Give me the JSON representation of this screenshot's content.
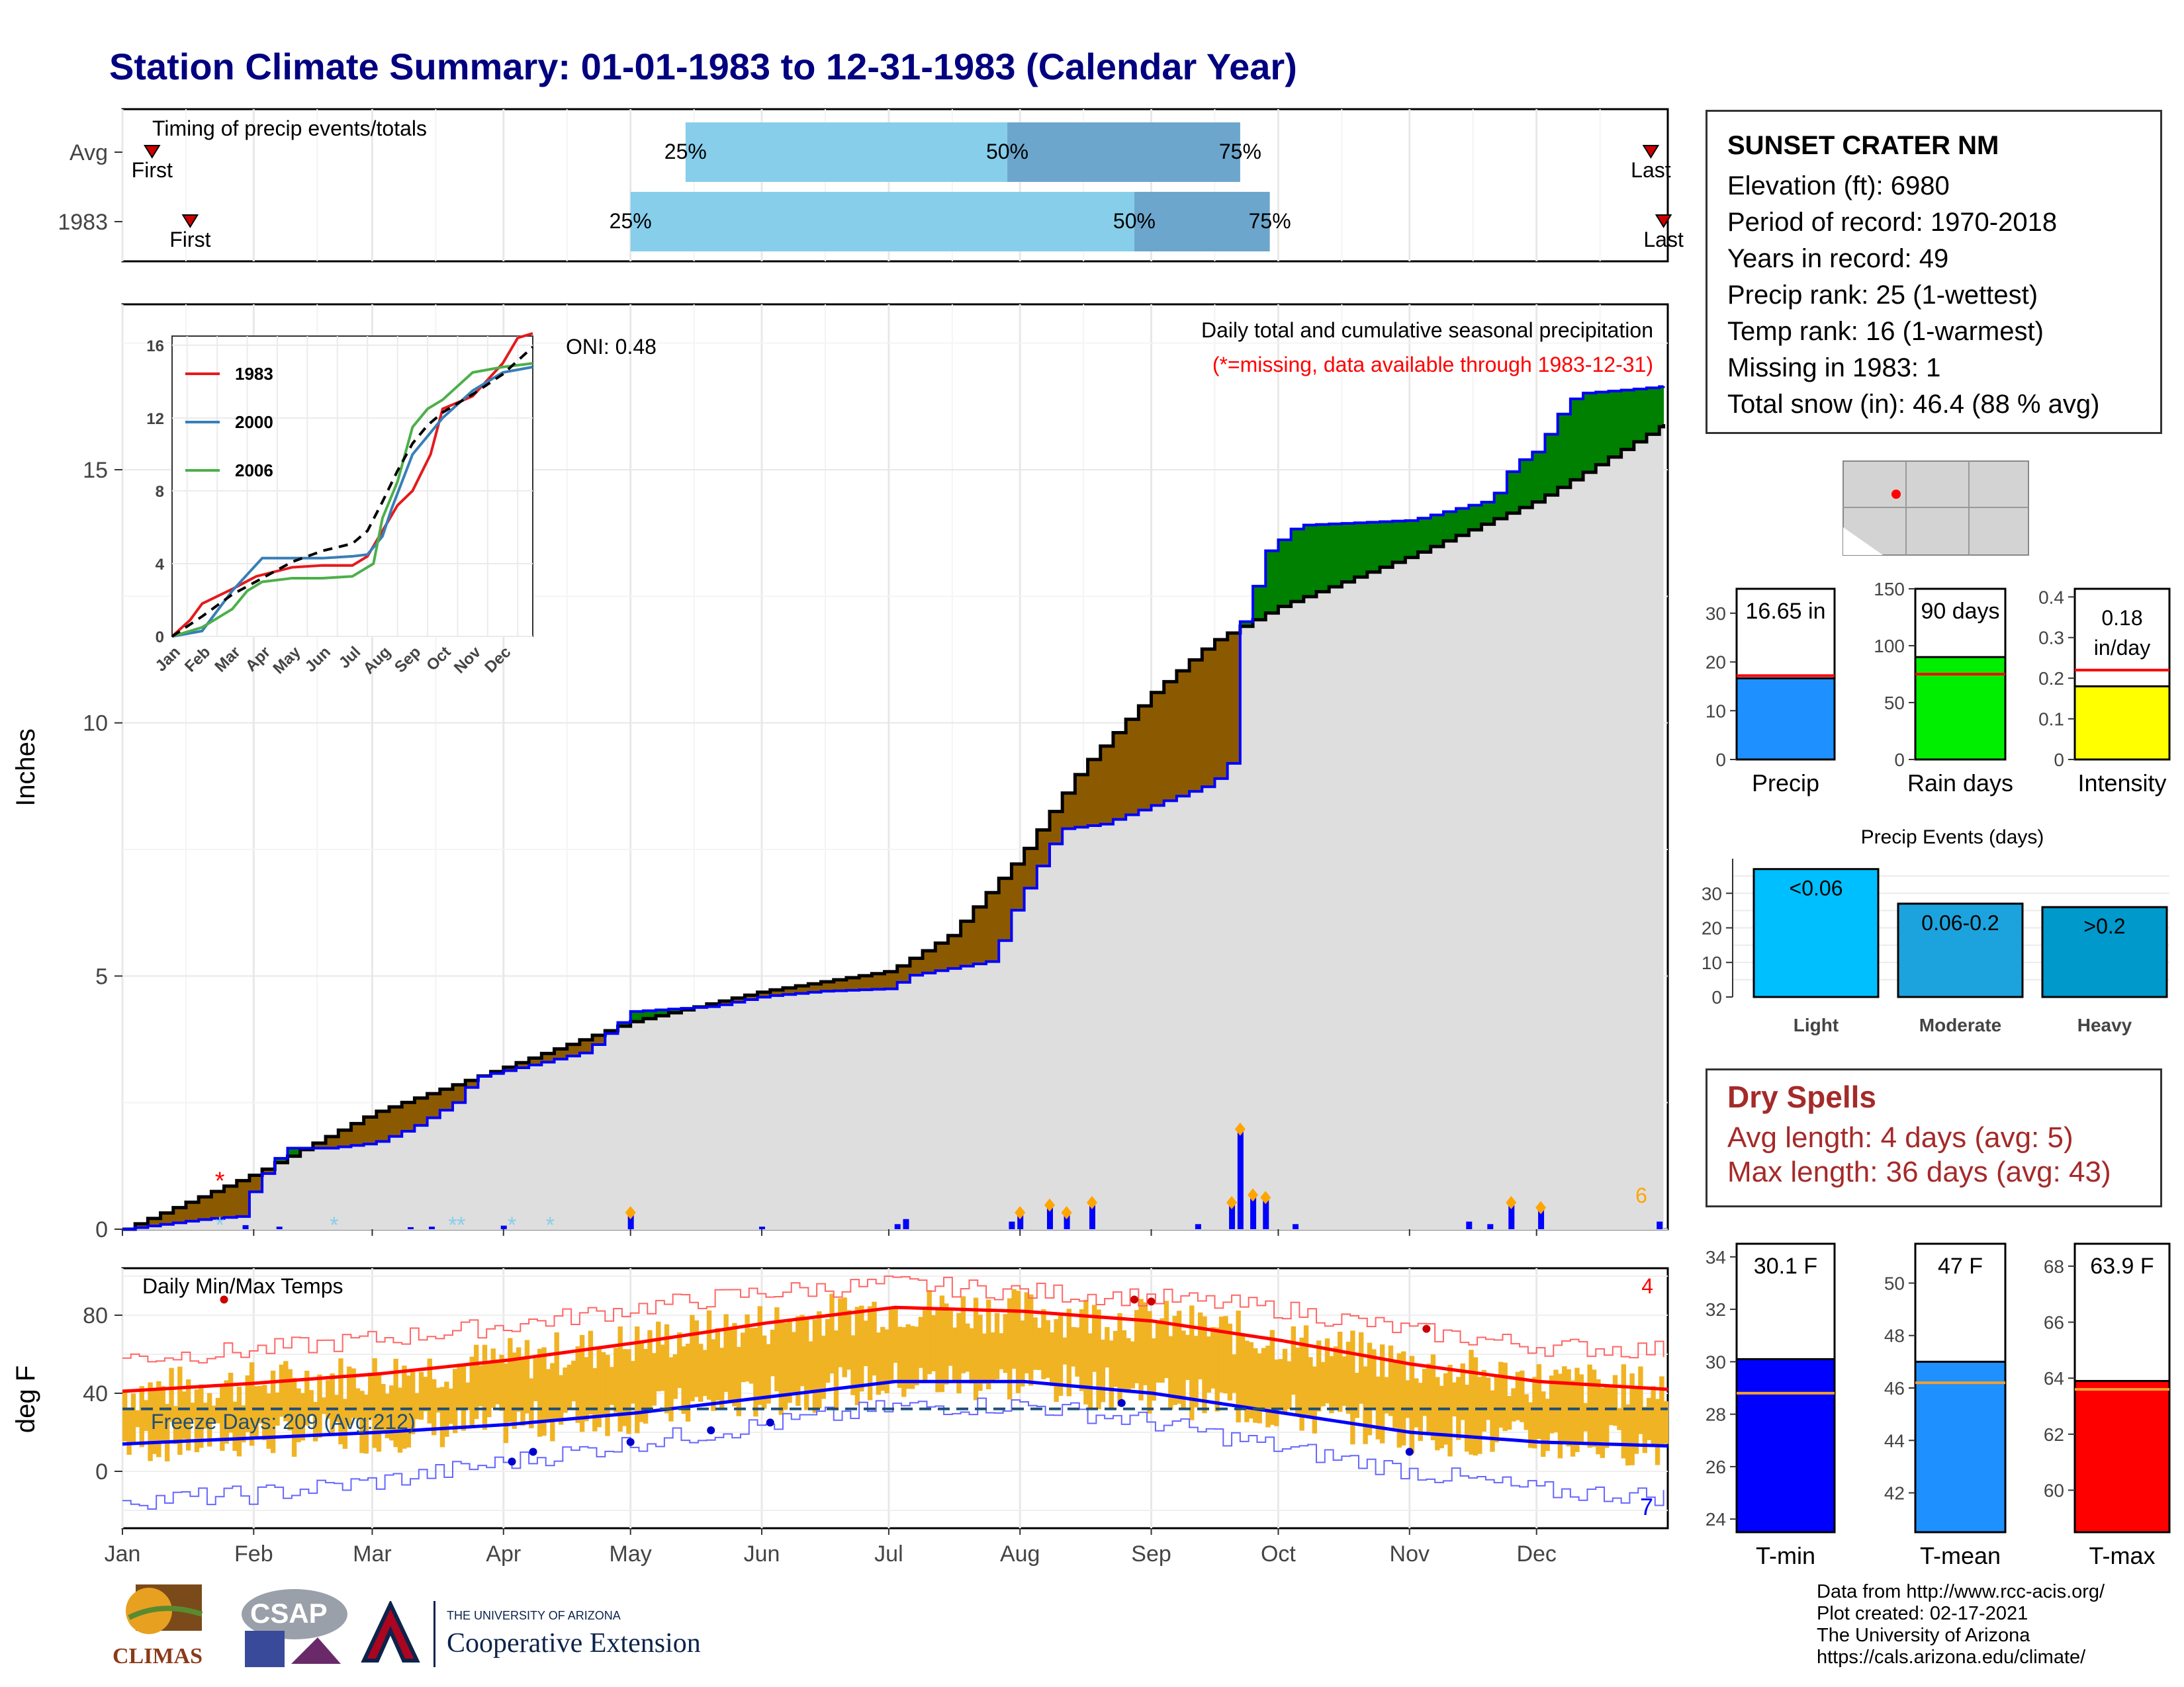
{
  "title": "Station Climate Summary: 01-01-1983 to 12-31-1983 (Calendar Year)",
  "station": {
    "name": "SUNSET CRATER NM",
    "lines": [
      "Elevation (ft): 6980",
      "Period of record: 1970-2018",
      "Years in record: 49",
      "Precip rank: 25 (1-wettest)",
      "Temp rank: 16 (1-warmest)",
      "Missing in 1983: 1",
      "Total snow (in): 46.4 (88 % avg)"
    ]
  },
  "dry_spells": {
    "heading": "Dry Spells",
    "avg_length": "Avg length: 4 days (avg: 5)",
    "max_length": "Max length: 36 days (avg: 43)"
  },
  "credits": [
    "Data from http://www.rcc-acis.org/",
    "Plot created: 02-17-2021",
    "The University of Arizona",
    "https://cals.arizona.edu/climate/"
  ],
  "logos": {
    "climas": "CLIMAS",
    "csap": "CSAP",
    "ua_small": "THE UNIVERSITY OF ARIZONA",
    "ua_big": "Cooperative Extension"
  },
  "colors": {
    "title": "#000080",
    "dry": "#a52a2a",
    "light_blue": "#87ceeb",
    "mid_blue": "#6ca6cd",
    "brown": "#8b5a00",
    "green": "#008000",
    "cum_fill": "#dedede",
    "bars_orange": "#f0b323",
    "tmin": "#0000ff",
    "tmax": "#ff0000",
    "missing": "#ff0000"
  },
  "chart_data": [
    {
      "id": "timing",
      "type": "bar",
      "title": "Timing of precip events/totals",
      "rows": [
        {
          "label": "Avg",
          "first": "Jan 8",
          "p25": "May 14",
          "p50": "Jul 29",
          "p75": "Sep 22",
          "last": "Dec 28",
          "first_label": "First",
          "p25_label": "25%",
          "p50_label": "50%",
          "p75_label": "75%",
          "last_label": "Last"
        },
        {
          "label": "1983",
          "first": "Jan 17",
          "p25": "May 1",
          "p50": "Aug 28",
          "p75": "Sep 29",
          "last": "Dec 31",
          "first_label": "First",
          "p25_label": "25%",
          "p50_label": "50%",
          "p75_label": "75%",
          "last_label": "Last"
        }
      ]
    },
    {
      "id": "precip_main",
      "type": "area",
      "title": "Daily total and cumulative seasonal precipitation",
      "subtitle": "(*=missing, data available through 1983-12-31)",
      "ylabel": "Inches",
      "ylim": [
        0,
        18
      ],
      "yticks": [
        0,
        5,
        10,
        15
      ],
      "xticks": [
        "Jan",
        "Feb",
        "Mar",
        "Apr",
        "May",
        "Jun",
        "Jul",
        "Aug",
        "Sep",
        "Oct",
        "Nov",
        "Dec"
      ],
      "oni": "ONI: 0.48",
      "corner_count": "6",
      "cumulative_avg": [
        [
          "Jan 1",
          0
        ],
        [
          "Feb 1",
          1.1
        ],
        [
          "Mar 1",
          2.3
        ],
        [
          "Apr 1",
          3.2
        ],
        [
          "May 1",
          4.1
        ],
        [
          "Jun 1",
          4.7
        ],
        [
          "Jul 1",
          5.1
        ],
        [
          "Jul 15",
          5.8
        ],
        [
          "Aug 1",
          7.4
        ],
        [
          "Aug 15",
          9.1
        ],
        [
          "Sep 1",
          10.6
        ],
        [
          "Sep 15",
          11.6
        ],
        [
          "Oct 1",
          12.3
        ],
        [
          "Nov 1",
          13.3
        ],
        [
          "Dec 1",
          14.4
        ],
        [
          "Dec 31",
          15.9
        ]
      ],
      "cumulative_1983": [
        [
          "Jan 1",
          0
        ],
        [
          "Jan 20",
          0.2
        ],
        [
          "Jan 28",
          0.25
        ],
        [
          "Feb 1",
          0.9
        ],
        [
          "Feb 8",
          1.6
        ],
        [
          "Feb 18",
          1.6
        ],
        [
          "Mar 1",
          1.7
        ],
        [
          "Mar 10",
          2.0
        ],
        [
          "Mar 20",
          2.5
        ],
        [
          "Mar 25",
          3.0
        ],
        [
          "Apr 10",
          3.3
        ],
        [
          "Apr 20",
          3.5
        ],
        [
          "May 1",
          4.3
        ],
        [
          "May 20",
          4.4
        ],
        [
          "Jun 1",
          4.6
        ],
        [
          "Jun 15",
          4.7
        ],
        [
          "Jul 1",
          4.75
        ],
        [
          "Jul 5",
          5.0
        ],
        [
          "Jul 25",
          5.3
        ],
        [
          "Jul 30",
          6.3
        ],
        [
          "Aug 10",
          7.9
        ],
        [
          "Aug 20",
          8.0
        ],
        [
          "Sep 15",
          8.8
        ],
        [
          "Sep 20",
          9.3
        ],
        [
          "Sep 22",
          12.0
        ],
        [
          "Sep 28",
          13.4
        ],
        [
          "Oct 5",
          13.9
        ],
        [
          "Nov 1",
          14.0
        ],
        [
          "Nov 15",
          14.3
        ],
        [
          "Nov 20",
          14.4
        ],
        [
          "Nov 25",
          15.1
        ],
        [
          "Dec 1",
          15.4
        ],
        [
          "Dec 5",
          16.0
        ],
        [
          "Dec 10",
          16.5
        ],
        [
          "Dec 25",
          16.6
        ],
        [
          "Dec 31",
          16.65
        ]
      ],
      "daily_bars": [
        [
          "Jan 30",
          0.08
        ],
        [
          "Feb 7",
          0.05
        ],
        [
          "Mar 10",
          0.04
        ],
        [
          "Mar 15",
          0.05
        ],
        [
          "Apr 1",
          0.07
        ],
        [
          "May 1",
          0.3
        ],
        [
          "Jun 1",
          0.05
        ],
        [
          "Jul 3",
          0.1
        ],
        [
          "Jul 5",
          0.2
        ],
        [
          "Jul 30",
          0.15
        ],
        [
          "Aug 1",
          0.3
        ],
        [
          "Aug 8",
          0.45
        ],
        [
          "Aug 12",
          0.3
        ],
        [
          "Aug 18",
          0.5
        ],
        [
          "Sep 12",
          0.1
        ],
        [
          "Sep 20",
          0.5
        ],
        [
          "Sep 22",
          1.95
        ],
        [
          "Sep 25",
          0.65
        ],
        [
          "Sep 28",
          0.6
        ],
        [
          "Oct 5",
          0.1
        ],
        [
          "Nov 15",
          0.15
        ],
        [
          "Nov 20",
          0.1
        ],
        [
          "Nov 25",
          0.5
        ],
        [
          "Dec 2",
          0.4
        ],
        [
          "Dec 30",
          0.15
        ]
      ],
      "missing_marker": "Jan 24"
    },
    {
      "id": "inset",
      "type": "line",
      "ylim": [
        0,
        16
      ],
      "yticks": [
        0,
        4,
        8,
        12,
        16
      ],
      "xticks": [
        "Jan",
        "Feb",
        "Mar",
        "Apr",
        "May",
        "Jun",
        "Jul",
        "Aug",
        "Sep",
        "Oct",
        "Nov",
        "Dec"
      ],
      "series": [
        {
          "name": "1983",
          "color": "#e41a1c",
          "values": [
            [
              0,
              0
            ],
            [
              0.6,
              0.9
            ],
            [
              1,
              1.8
            ],
            [
              1.5,
              2.2
            ],
            [
              2,
              2.6
            ],
            [
              2.8,
              3.3
            ],
            [
              4,
              3.8
            ],
            [
              5,
              3.9
            ],
            [
              6,
              3.9
            ],
            [
              6.5,
              4.4
            ],
            [
              7,
              5.8
            ],
            [
              7.5,
              7.2
            ],
            [
              8,
              8.0
            ],
            [
              8.6,
              10.0
            ],
            [
              9,
              12.5
            ],
            [
              10,
              13.2
            ],
            [
              11,
              15.0
            ],
            [
              11.5,
              16.4
            ],
            [
              12,
              16.65
            ]
          ]
        },
        {
          "name": "2000",
          "color": "#377eb8",
          "values": [
            [
              0,
              0
            ],
            [
              1,
              0.3
            ],
            [
              2,
              2.5
            ],
            [
              3,
              4.3
            ],
            [
              4,
              4.3
            ],
            [
              5,
              4.3
            ],
            [
              6,
              4.4
            ],
            [
              6.5,
              4.5
            ],
            [
              7,
              5.5
            ],
            [
              7.3,
              7.0
            ],
            [
              8,
              10.0
            ],
            [
              9,
              12.0
            ],
            [
              10,
              13.5
            ],
            [
              11,
              14.5
            ],
            [
              12,
              14.8
            ]
          ]
        },
        {
          "name": "2006",
          "color": "#4daf4a",
          "values": [
            [
              0,
              0
            ],
            [
              1,
              0.5
            ],
            [
              2,
              1.5
            ],
            [
              2.5,
              2.5
            ],
            [
              3,
              3.0
            ],
            [
              4,
              3.2
            ],
            [
              5,
              3.2
            ],
            [
              6,
              3.3
            ],
            [
              6.7,
              4.0
            ],
            [
              7,
              6.5
            ],
            [
              7.5,
              8.5
            ],
            [
              8,
              11.5
            ],
            [
              8.5,
              12.5
            ],
            [
              9,
              13.0
            ],
            [
              10,
              14.5
            ],
            [
              11,
              14.8
            ],
            [
              12,
              15.0
            ]
          ]
        },
        {
          "name": "",
          "color": "#000000",
          "values": [
            [
              0,
              0
            ],
            [
              1,
              1.1
            ],
            [
              2,
              2.3
            ],
            [
              3,
              3.2
            ],
            [
              4,
              4.1
            ],
            [
              5,
              4.7
            ],
            [
              6,
              5.1
            ],
            [
              6.5,
              5.8
            ],
            [
              7,
              7.4
            ],
            [
              7.5,
              9.1
            ],
            [
              8,
              10.6
            ],
            [
              8.5,
              11.6
            ],
            [
              9,
              12.3
            ],
            [
              10,
              13.3
            ],
            [
              11,
              14.4
            ],
            [
              12,
              15.9
            ]
          ]
        }
      ]
    },
    {
      "id": "precip_totals",
      "type": "bar",
      "panels": [
        {
          "label": "Precip",
          "value": 16.65,
          "value_label": "16.65 in",
          "avg": 17.2,
          "ylim": [
            0,
            35
          ],
          "yticks": [
            0,
            10,
            20,
            30
          ],
          "color": "#1e90ff"
        },
        {
          "label": "Rain days",
          "value": 90,
          "value_label": "90 days",
          "avg": 75,
          "ylim": [
            0,
            150
          ],
          "yticks": [
            0,
            50,
            100,
            150
          ],
          "color": "#00ee00"
        },
        {
          "label": "Intensity",
          "value": 0.18,
          "value_label": "0.18 in/day",
          "value_label_top": "0.18",
          "value_label_bottom": "in/day",
          "avg": 0.22,
          "ylim": [
            0,
            0.42
          ],
          "yticks": [
            0.0,
            0.1,
            0.2,
            0.3,
            0.4
          ],
          "color": "#ffff00"
        }
      ]
    },
    {
      "id": "precip_events",
      "type": "bar",
      "title": "Precip Events (days)",
      "categories": [
        "Light",
        "Moderate",
        "Heavy"
      ],
      "values": [
        37,
        27,
        26
      ],
      "bar_labels": [
        "<0.06",
        "0.06-0.2",
        ">0.2"
      ],
      "colors": [
        "#00bfff",
        "#1ca3dd",
        "#0099cc"
      ],
      "ylim": [
        0,
        40
      ],
      "yticks": [
        0,
        10,
        20,
        30
      ]
    },
    {
      "id": "temps",
      "type": "line",
      "title": "Daily Min/Max Temps",
      "ylabel": "deg F",
      "ylim": [
        -20,
        100
      ],
      "yticks": [
        0,
        40,
        80
      ],
      "xticks": [
        "Jan",
        "Feb",
        "Mar",
        "Apr",
        "May",
        "Jun",
        "Jul",
        "Aug",
        "Sep",
        "Oct",
        "Nov",
        "Dec"
      ],
      "freeze_label": "Freeze Days: 209 (Avg:212)",
      "freeze_line": 32,
      "count_max": "4",
      "count_min": "7",
      "avg_max": [
        [
          0,
          41
        ],
        [
          1,
          45
        ],
        [
          2,
          50
        ],
        [
          3,
          57
        ],
        [
          4,
          66
        ],
        [
          5,
          76
        ],
        [
          6,
          84
        ],
        [
          7,
          82
        ],
        [
          8,
          77
        ],
        [
          9,
          67
        ],
        [
          10,
          55
        ],
        [
          11,
          46
        ],
        [
          12,
          42
        ]
      ],
      "avg_min": [
        [
          0,
          14
        ],
        [
          1,
          17
        ],
        [
          2,
          20
        ],
        [
          3,
          24
        ],
        [
          4,
          30
        ],
        [
          5,
          38
        ],
        [
          6,
          46
        ],
        [
          7,
          46
        ],
        [
          8,
          40
        ],
        [
          9,
          30
        ],
        [
          10,
          20
        ],
        [
          11,
          15
        ],
        [
          12,
          13
        ]
      ],
      "rec_max": [
        [
          0,
          58
        ],
        [
          1,
          62
        ],
        [
          2,
          68
        ],
        [
          3,
          75
        ],
        [
          4,
          84
        ],
        [
          5,
          92
        ],
        [
          6,
          96
        ],
        [
          7,
          92
        ],
        [
          8,
          89
        ],
        [
          9,
          83
        ],
        [
          10,
          72
        ],
        [
          11,
          64
        ],
        [
          12,
          62
        ]
      ],
      "rec_min": [
        [
          0,
          -15
        ],
        [
          1,
          -12
        ],
        [
          2,
          -5
        ],
        [
          3,
          5
        ],
        [
          4,
          15
        ],
        [
          5,
          24
        ],
        [
          6,
          33
        ],
        [
          7,
          34
        ],
        [
          8,
          25
        ],
        [
          9,
          12
        ],
        [
          10,
          0
        ],
        [
          11,
          -10
        ],
        [
          12,
          -13
        ]
      ]
    },
    {
      "id": "temp_totals",
      "type": "bar",
      "panels": [
        {
          "label": "T-min",
          "value": 30.1,
          "value_label": "30.1 F",
          "avg": 28.8,
          "ylim": [
            23.5,
            34.5
          ],
          "yticks": [
            24,
            26,
            28,
            30,
            32,
            34
          ],
          "color": "#0000ff"
        },
        {
          "label": "T-mean",
          "value": 47,
          "value_label": "47 F",
          "avg": 46.2,
          "ylim": [
            40.5,
            51.5
          ],
          "yticks": [
            42,
            44,
            46,
            48,
            50
          ],
          "color": "#1e90ff"
        },
        {
          "label": "T-max",
          "value": 63.9,
          "value_label": "63.9 F",
          "avg": 63.6,
          "ylim": [
            58.5,
            68.8
          ],
          "yticks": [
            60,
            62,
            64,
            66,
            68
          ],
          "color": "#ff0000"
        }
      ]
    }
  ]
}
